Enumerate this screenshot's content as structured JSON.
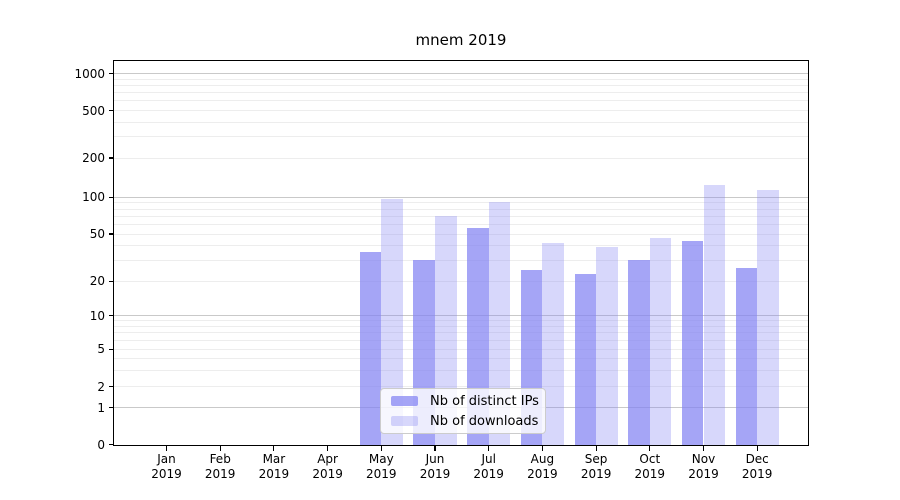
{
  "title": "mnem 2019",
  "chart_data": {
    "type": "bar",
    "title": "mnem 2019",
    "categories": [
      "Jan 2019",
      "Feb 2019",
      "Mar 2019",
      "Apr 2019",
      "May 2019",
      "Jun 2019",
      "Jul 2019",
      "Aug 2019",
      "Sep 2019",
      "Oct 2019",
      "Nov 2019",
      "Dec 2019"
    ],
    "series": [
      {
        "name": "Nb of distinct IPs",
        "color": "rgba(130,130,242,0.72)",
        "values": [
          0,
          0,
          0,
          0,
          35,
          30,
          56,
          25,
          23,
          30,
          44,
          26
        ]
      },
      {
        "name": "Nb of downloads",
        "color": "rgba(130,130,242,0.32)",
        "values": [
          0,
          0,
          0,
          0,
          96,
          70,
          92,
          42,
          39,
          46,
          124,
          113
        ]
      }
    ],
    "xlabel": "",
    "ylabel": "",
    "yscale": "symlog",
    "yticks": [
      0,
      1,
      2,
      5,
      10,
      20,
      50,
      100,
      200,
      500,
      1000
    ],
    "ylim": [
      0,
      1300
    ],
    "grid": true,
    "legend_position": "lower-center-inside"
  },
  "legend": {
    "items": [
      {
        "label": "Nb of distinct IPs"
      },
      {
        "label": "Nb of downloads"
      }
    ]
  },
  "colors": {
    "bar_distinct_ips": "rgba(130,130,242,0.72)",
    "bar_downloads": "rgba(130,130,242,0.32)",
    "major_gridline": "#c9c9c9",
    "minor_gridline": "#ededed",
    "axis": "#000000",
    "legend_border": "#cccccc",
    "legend_background": "rgba(255,255,255,0.8)"
  }
}
